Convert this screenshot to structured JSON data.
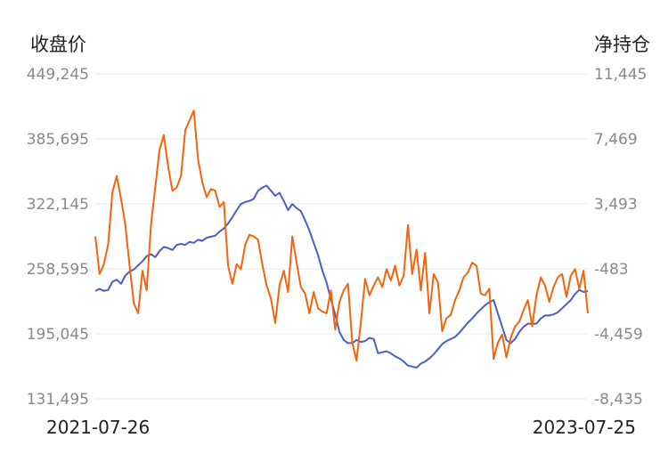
{
  "chart_data": {
    "type": "line",
    "left_axis": {
      "title": "收盘价",
      "ticks": [
        "449,245",
        "385,695",
        "322,145",
        "258,595",
        "195,045",
        "131,495"
      ],
      "ylim": [
        131495,
        449245
      ]
    },
    "right_axis": {
      "title": "净持仓",
      "ticks": [
        "11,445",
        "7,469",
        "3,493",
        "-483",
        "-4,459",
        "-8,435"
      ],
      "ylim": [
        -8435,
        11445
      ]
    },
    "x_labels": {
      "start": "2021-07-26",
      "end": "2023-07-25"
    },
    "grid": true,
    "series": [
      {
        "axis": "left",
        "color": "#4a5fc1",
        "values": [
          237000,
          239000,
          237000,
          238000,
          246000,
          248000,
          244000,
          252000,
          256000,
          258000,
          262000,
          266000,
          271000,
          273000,
          270000,
          276000,
          280000,
          279000,
          277000,
          282000,
          283000,
          282000,
          285000,
          284000,
          287000,
          286000,
          289000,
          290000,
          291000,
          295000,
          298000,
          303000,
          309000,
          316000,
          322000,
          324000,
          325000,
          327000,
          335000,
          338000,
          340000,
          335000,
          330000,
          333000,
          325000,
          316000,
          322000,
          318000,
          315000,
          306000,
          296000,
          284000,
          272000,
          257000,
          245000,
          229000,
          214000,
          197000,
          189000,
          186000,
          186000,
          189000,
          187000,
          188000,
          191000,
          190000,
          176000,
          177000,
          178000,
          176000,
          173000,
          171000,
          168000,
          164000,
          163000,
          162000,
          166000,
          168000,
          171000,
          175000,
          180000,
          185000,
          188000,
          190000,
          192000,
          196000,
          201000,
          206000,
          210000,
          215000,
          219000,
          223000,
          226000,
          228000,
          215000,
          202000,
          189000,
          186000,
          190000,
          197000,
          202000,
          205000,
          205000,
          205000,
          210000,
          213000,
          213000,
          214000,
          216000,
          220000,
          224000,
          228000,
          234000,
          238000,
          236000,
          237000
        ],
        "name": ""
      },
      {
        "axis": "right",
        "color": "#f5630c",
        "values": [
          1500,
          -800,
          -200,
          1000,
          4200,
          5200,
          3800,
          2200,
          -300,
          -2600,
          -3200,
          -600,
          -1800,
          2200,
          4500,
          6800,
          7700,
          5800,
          4300,
          4500,
          5200,
          8000,
          8600,
          9200,
          6200,
          4800,
          3900,
          4400,
          4300,
          3300,
          3600,
          -300,
          -1400,
          -200,
          -500,
          1000,
          1600,
          1500,
          1300,
          -200,
          -1500,
          -2300,
          -3800,
          -1500,
          -600,
          -1900,
          1500,
          -100,
          -1600,
          -2000,
          -3200,
          -1900,
          -2900,
          -3100,
          -3200,
          -1800,
          -4200,
          -2500,
          -1800,
          -1400,
          -5000,
          -6100,
          -3800,
          -1100,
          -2100,
          -1500,
          -1000,
          -1600,
          -500,
          -1200,
          -300,
          -1500,
          -900,
          2200,
          -800,
          700,
          -1800,
          500,
          -3200,
          -800,
          -1300,
          -4300,
          -3500,
          -3300,
          -2400,
          -1800,
          -1000,
          -700,
          -100,
          -300,
          -2000,
          -2100,
          -1700,
          -6000,
          -5000,
          -4500,
          -5900,
          -4700,
          -4000,
          -3700,
          -3000,
          -2400,
          -4000,
          -2100,
          -1000,
          -1500,
          -2500,
          -1600,
          -1000,
          -800,
          -2200,
          -900,
          -500,
          -1700,
          -600,
          -3200
        ],
        "name": ""
      }
    ]
  }
}
